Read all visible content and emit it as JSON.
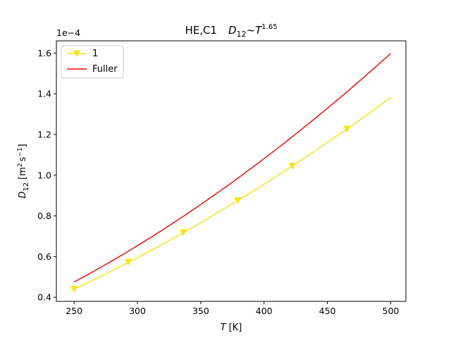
{
  "chart_data": {
    "type": "line",
    "title_left": "HE,C1",
    "title_formula": {
      "d_base": "D",
      "d_sub": "12",
      "tilde": "~",
      "t_base": "T",
      "exponent": "1.65"
    },
    "xlabel": {
      "var": "T",
      "unit": "[K]"
    },
    "ylabel": {
      "var": "D",
      "sub": "12",
      "unit_open": "[m",
      "sup2": "2",
      "unit_mid": "s",
      "sup_minus1": "−1",
      "unit_close": "]"
    },
    "offset_text": "1e−4",
    "xlim": [
      236,
      512
    ],
    "ylim": [
      0.38,
      1.66
    ],
    "xticks": [
      250,
      300,
      350,
      400,
      450,
      500
    ],
    "yticks": [
      0.4,
      0.6,
      0.8,
      1.0,
      1.2,
      1.4,
      1.6
    ],
    "ytick_labels": [
      "0.4",
      "0.6",
      "0.8",
      "1.0",
      "1.2",
      "1.4",
      "1.6"
    ],
    "xtick_labels": [
      "250",
      "300",
      "350",
      "400",
      "450",
      "500"
    ],
    "legend_position": "top-left",
    "series": [
      {
        "name": "1",
        "color": "#f5e41e",
        "marker": "triangle-down",
        "exponent": 1.65,
        "y_start": 0.44,
        "x": [
          250,
          500
        ],
        "marker_x": [
          250,
          293.1,
          336.2,
          379.3,
          422.4,
          465.5
        ],
        "marker_y": [
          0.44,
          0.573,
          0.718,
          0.876,
          1.045,
          1.227
        ],
        "y_end": 1.38
      },
      {
        "name": "Fuller",
        "color": "#e8110f",
        "marker": "none",
        "exponent": 1.75,
        "y_start": 0.475,
        "x": [
          250,
          500
        ],
        "y_end": 1.6
      }
    ]
  }
}
